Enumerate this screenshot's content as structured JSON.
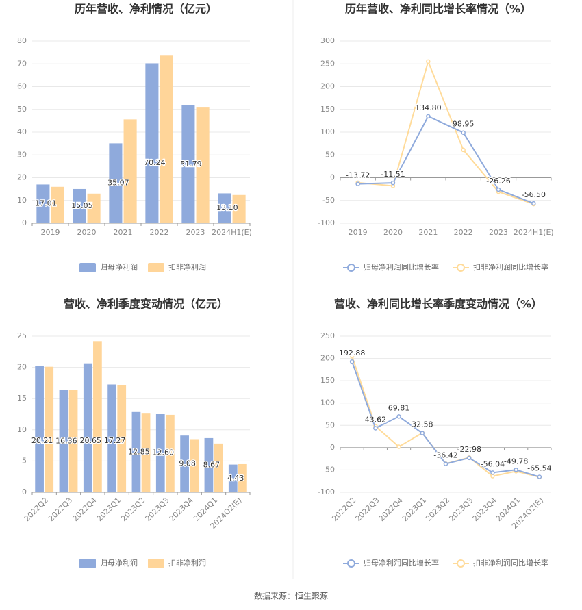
{
  "chart_data": [
    {
      "type": "bar",
      "title": "历年营收、净利情况（亿元）",
      "categories": [
        "2019",
        "2020",
        "2021",
        "2022",
        "2023",
        "2024H1(E)"
      ],
      "series": [
        {
          "name": "归母净利润",
          "color": "#8faadc",
          "values": [
            17.01,
            15.05,
            35.07,
            70.24,
            51.79,
            13.1
          ],
          "value_labels": [
            "17.01",
            "15.05",
            "35.07",
            "70.24",
            "51.79",
            "13.10"
          ]
        },
        {
          "name": "扣非净利润",
          "color": "#ffd599",
          "values": [
            16.0,
            13.0,
            45.6,
            73.6,
            50.8,
            12.4
          ]
        }
      ],
      "ylim": [
        0,
        80
      ],
      "yticks": [
        0,
        10,
        20,
        30,
        40,
        50,
        60,
        70,
        80
      ],
      "grid": true,
      "legend": "bottom",
      "x_label_rotation": 0
    },
    {
      "type": "line",
      "title": "历年营收、净利同比增长率情况（%）",
      "categories": [
        "2019",
        "2020",
        "2021",
        "2022",
        "2023",
        "2024H1(E)"
      ],
      "series": [
        {
          "name": "归母净利润同比增长率",
          "color": "#8faadc",
          "values": [
            -13.72,
            -11.51,
            134.8,
            98.95,
            -26.26,
            -56.5
          ],
          "value_labels": [
            "-13.72",
            "-11.51",
            "134.80",
            "98.95",
            "-26.26",
            "-56.50"
          ]
        },
        {
          "name": "扣非净利润同比增长率",
          "color": "#ffdb9a",
          "values": [
            -11,
            -18,
            255,
            61,
            -31,
            -58
          ]
        }
      ],
      "ylim": [
        -100,
        300
      ],
      "yticks": [
        -100,
        -50,
        0,
        50,
        100,
        150,
        200,
        250,
        300
      ],
      "grid": true,
      "legend": "bottom",
      "x_label_rotation": 0
    },
    {
      "type": "bar",
      "title": "营收、净利季度变动情况（亿元）",
      "categories": [
        "2022Q2",
        "2022Q3",
        "2022Q4",
        "2023Q1",
        "2023Q2",
        "2023Q3",
        "2023Q4",
        "2024Q1",
        "2024Q2(E)"
      ],
      "series": [
        {
          "name": "归母净利润",
          "color": "#8faadc",
          "values": [
            20.21,
            16.36,
            20.65,
            17.27,
            12.85,
            12.6,
            9.08,
            8.67,
            4.43
          ],
          "value_labels": [
            "20.21",
            "16.36",
            "20.65",
            "17.27",
            "12.85",
            "12.60",
            "9.08",
            "8.67",
            "4.43"
          ]
        },
        {
          "name": "扣非净利润",
          "color": "#ffd599",
          "values": [
            20.1,
            16.4,
            24.2,
            17.2,
            12.7,
            12.4,
            8.5,
            7.8,
            4.5
          ]
        }
      ],
      "ylim": [
        0,
        25
      ],
      "yticks": [
        0,
        5,
        10,
        15,
        20,
        25
      ],
      "grid": true,
      "legend": "bottom",
      "x_label_rotation": 45
    },
    {
      "type": "line",
      "title": "营收、净利同比增长率季度变动情况（%）",
      "categories": [
        "2022Q2",
        "2022Q3",
        "2022Q4",
        "2023Q1",
        "2023Q2",
        "2023Q3",
        "2023Q4",
        "2024Q1",
        "2024Q2(E)"
      ],
      "series": [
        {
          "name": "归母净利润同比增长率",
          "color": "#8faadc",
          "values": [
            192.88,
            43.62,
            69.81,
            32.58,
            -36.42,
            -22.98,
            -56.04,
            -49.78,
            -65.54
          ],
          "value_labels": [
            "192.88",
            "43.62",
            "69.81",
            "32.58",
            "-36.42",
            "-22.98",
            "-56.04",
            "-49.78",
            "-65.54"
          ]
        },
        {
          "name": "扣非净利润同比增长率",
          "color": "#ffdb9a",
          "values": [
            205,
            48,
            2,
            33,
            -36,
            -22,
            -64,
            -53,
            -66
          ]
        }
      ],
      "ylim": [
        -100,
        250
      ],
      "yticks": [
        -100,
        -50,
        0,
        50,
        100,
        150,
        200,
        250
      ],
      "grid": true,
      "legend": "bottom",
      "x_label_rotation": 45
    }
  ],
  "source": "数据来源：恒生聚源"
}
